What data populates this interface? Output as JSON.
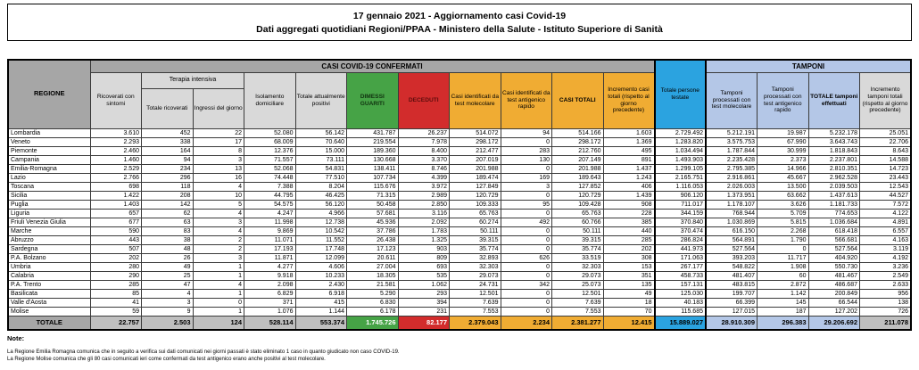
{
  "header": {
    "line1": "17 gennaio 2021 - Aggiornamento casi Covid-19",
    "line2": "Dati aggregati quotidiani Regioni/PPAA - Ministero della Salute - Istituto Superiore di Sanità"
  },
  "table": {
    "header": {
      "regione": "REGIONE",
      "casi_band": "CASI COVID-19 CONFERMATI",
      "terapia_band": "Terapia intensiva",
      "tamponi_band": "TAMPONI",
      "cols": [
        "Ricoverati con sintomi",
        "Totale ricoverati",
        "Ingressi del giorno",
        "Isolamento domiciliare",
        "Totale attualmente positivi",
        "DIMESSI GUARITI",
        "DECEDUTI",
        "Casi identificati da test molecolare",
        "Casi identificati da test antigenico rapido",
        "CASI TOTALI",
        "Incremento casi totali (rispetto al giorno precedente)",
        "Totale persone testate",
        "Tamponi processati con test molecolare",
        "Tamponi processati con test antigenico rapido",
        "TOTALE tamponi effettuati",
        "Incremento tamponi totali (rispetto al giorno precedente)"
      ]
    },
    "rows": [
      {
        "name": "Lombardia",
        "values": [
          "3.610",
          "452",
          "22",
          "52.080",
          "56.142",
          "431.787",
          "26.237",
          "514.072",
          "94",
          "514.166",
          "1.603",
          "2.729.492",
          "5.212.191",
          "19.987",
          "5.232.178",
          "25.051"
        ]
      },
      {
        "name": "Veneto",
        "values": [
          "2.293",
          "338",
          "17",
          "68.009",
          "70.640",
          "219.554",
          "7.978",
          "298.172",
          "0",
          "298.172",
          "1.369",
          "1.283.820",
          "3.575.753",
          "67.990",
          "3.643.743",
          "22.706"
        ]
      },
      {
        "name": "Piemonte",
        "values": [
          "2.460",
          "164",
          "8",
          "12.376",
          "15.000",
          "189.360",
          "8.400",
          "212.477",
          "283",
          "212.760",
          "495",
          "1.034.494",
          "1.787.844",
          "30.999",
          "1.818.843",
          "8.643"
        ]
      },
      {
        "name": "Campania",
        "values": [
          "1.460",
          "94",
          "3",
          "71.557",
          "73.111",
          "130.668",
          "3.370",
          "207.019",
          "130",
          "207.149",
          "891",
          "1.493.903",
          "2.235.428",
          "2.373",
          "2.237.801",
          "14.588"
        ]
      },
      {
        "name": "Emilia-Romagna",
        "values": [
          "2.529",
          "234",
          "13",
          "52.068",
          "54.831",
          "138.411",
          "8.746",
          "201.988",
          "0",
          "201.988",
          "1.437",
          "1.299.105",
          "2.795.385",
          "14.966",
          "2.810.351",
          "14.723"
        ]
      },
      {
        "name": "Lazio",
        "values": [
          "2.766",
          "296",
          "16",
          "74.448",
          "77.510",
          "107.734",
          "4.399",
          "189.474",
          "169",
          "189.643",
          "1.243",
          "2.165.751",
          "2.916.861",
          "45.667",
          "2.962.528",
          "23.443"
        ]
      },
      {
        "name": "Toscana",
        "values": [
          "698",
          "118",
          "4",
          "7.388",
          "8.204",
          "115.676",
          "3.972",
          "127.849",
          "3",
          "127.852",
          "406",
          "1.116.053",
          "2.026.003",
          "13.500",
          "2.039.503",
          "12.543"
        ]
      },
      {
        "name": "Sicilia",
        "values": [
          "1.422",
          "208",
          "10",
          "44.795",
          "46.425",
          "71.315",
          "2.989",
          "120.729",
          "0",
          "120.729",
          "1.439",
          "906.120",
          "1.373.951",
          "63.662",
          "1.437.613",
          "44.527"
        ]
      },
      {
        "name": "Puglia",
        "values": [
          "1.403",
          "142",
          "5",
          "54.575",
          "56.120",
          "50.458",
          "2.850",
          "109.333",
          "95",
          "109.428",
          "908",
          "711.017",
          "1.178.107",
          "3.626",
          "1.181.733",
          "7.572"
        ]
      },
      {
        "name": "Liguria",
        "values": [
          "657",
          "62",
          "4",
          "4.247",
          "4.966",
          "57.681",
          "3.116",
          "65.763",
          "0",
          "65.763",
          "228",
          "344.159",
          "768.944",
          "5.709",
          "774.653",
          "4.122"
        ]
      },
      {
        "name": "Friuli Venezia Giulia",
        "values": [
          "677",
          "63",
          "3",
          "11.998",
          "12.738",
          "45.936",
          "2.092",
          "60.274",
          "492",
          "60.766",
          "385",
          "370.840",
          "1.030.869",
          "5.815",
          "1.036.684",
          "4.891"
        ]
      },
      {
        "name": "Marche",
        "values": [
          "590",
          "83",
          "4",
          "9.869",
          "10.542",
          "37.786",
          "1.783",
          "50.111",
          "0",
          "50.111",
          "440",
          "370.474",
          "616.150",
          "2.268",
          "618.418",
          "6.557"
        ]
      },
      {
        "name": "Abruzzo",
        "values": [
          "443",
          "38",
          "2",
          "11.071",
          "11.552",
          "26.438",
          "1.325",
          "39.315",
          "0",
          "39.315",
          "285",
          "286.824",
          "564.891",
          "1.790",
          "566.681",
          "4.163"
        ]
      },
      {
        "name": "Sardegna",
        "values": [
          "507",
          "48",
          "2",
          "17.193",
          "17.748",
          "17.123",
          "903",
          "35.774",
          "0",
          "35.774",
          "202",
          "441.973",
          "527.564",
          "0",
          "527.564",
          "3.119"
        ]
      },
      {
        "name": "P.A. Bolzano",
        "values": [
          "202",
          "26",
          "3",
          "11.871",
          "12.099",
          "20.611",
          "809",
          "32.893",
          "626",
          "33.519",
          "308",
          "171.063",
          "393.203",
          "11.717",
          "404.920",
          "4.192"
        ]
      },
      {
        "name": "Umbria",
        "values": [
          "280",
          "49",
          "1",
          "4.277",
          "4.606",
          "27.004",
          "693",
          "32.303",
          "0",
          "32.303",
          "153",
          "267.177",
          "548.822",
          "1.908",
          "550.730",
          "3.236"
        ]
      },
      {
        "name": "Calabria",
        "values": [
          "290",
          "25",
          "1",
          "9.918",
          "10.233",
          "18.305",
          "535",
          "29.073",
          "0",
          "29.073",
          "351",
          "458.733",
          "481.407",
          "60",
          "481.467",
          "2.549"
        ]
      },
      {
        "name": "P.A. Trento",
        "values": [
          "285",
          "47",
          "4",
          "2.098",
          "2.430",
          "21.581",
          "1.062",
          "24.731",
          "342",
          "25.073",
          "135",
          "157.131",
          "483.815",
          "2.872",
          "486.687",
          "2.633"
        ]
      },
      {
        "name": "Basilicata",
        "values": [
          "85",
          "4",
          "1",
          "6.829",
          "6.918",
          "5.290",
          "293",
          "12.501",
          "0",
          "12.501",
          "49",
          "125.030",
          "199.707",
          "1.142",
          "200.849",
          "956"
        ]
      },
      {
        "name": "Valle d'Aosta",
        "values": [
          "41",
          "3",
          "0",
          "371",
          "415",
          "6.830",
          "394",
          "7.639",
          "0",
          "7.639",
          "18",
          "40.183",
          "66.399",
          "145",
          "66.544",
          "138"
        ]
      },
      {
        "name": "Molise",
        "values": [
          "59",
          "9",
          "1",
          "1.076",
          "1.144",
          "6.178",
          "231",
          "7.553",
          "0",
          "7.553",
          "70",
          "115.685",
          "127.015",
          "187",
          "127.202",
          "726"
        ]
      }
    ],
    "totale": {
      "label": "TOTALE",
      "values": [
        "22.757",
        "2.503",
        "124",
        "528.114",
        "553.374",
        "1.745.726",
        "82.177",
        "2.379.043",
        "2.234",
        "2.381.277",
        "12.415",
        "15.889.027",
        "28.910.309",
        "296.383",
        "29.206.692",
        "211.078"
      ]
    }
  },
  "notes": {
    "heading": "Note:",
    "lines": [
      "La Regione Emilia Romagna comunica che in seguito a verifica sui dati comunicati nei giorni passati è stato eliminato 1 caso in quanto giudicato non caso COVID-19.",
      "La Regione Molise comunica che gli 80 casi comunicati ieri come confermati da test antigenico erano anche positivi al test molecolare."
    ]
  },
  "colors": {
    "band_gray": "#a6a6a6",
    "subheader_gray": "#d9d9d9",
    "totale_gray": "#bfbfbf",
    "green": "#46a346",
    "red": "#d22c2c",
    "orange": "#f0ac33",
    "blue": "#2ba3e0",
    "light_blue": "#b4c7e7"
  }
}
